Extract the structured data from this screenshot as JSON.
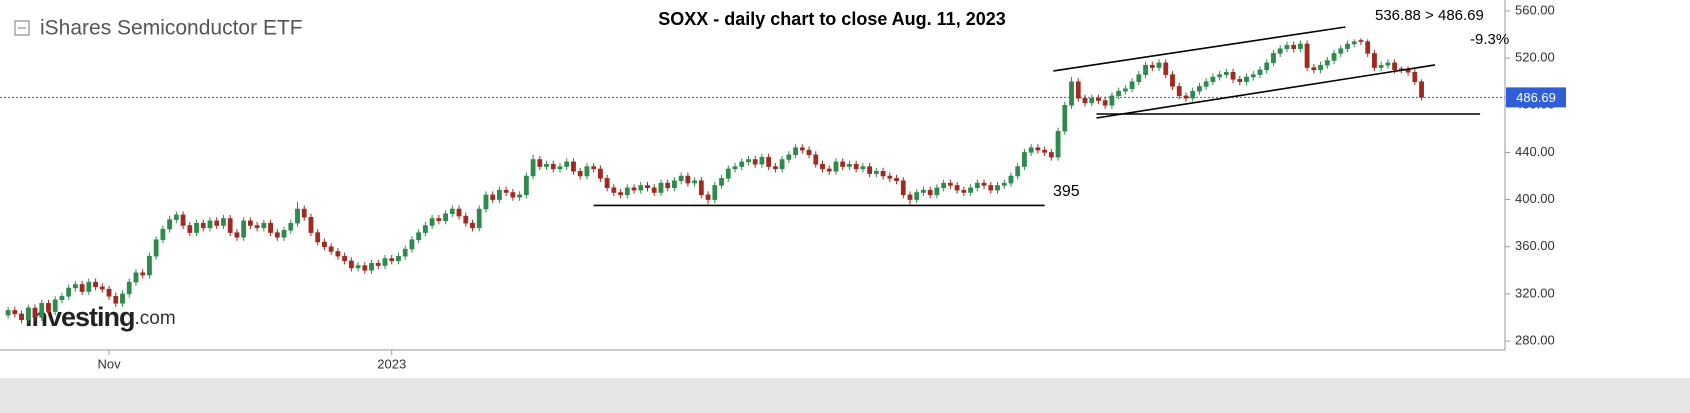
{
  "chart_data": {
    "type": "candlestick",
    "title": "SOXX - daily chart to close Aug. 11, 2023",
    "instrument": "iShares Semiconductor ETF",
    "logo": {
      "name": "Investing",
      "suffix": ".com"
    },
    "annotations": {
      "support": "395",
      "move": "536.88 > 486.69",
      "change": "-9.3%"
    },
    "last_price": 486.69,
    "up_color": "#2e8a4f",
    "down_color": "#9e2a22",
    "price_color": "#2f5ed8",
    "ylim": [
      272.4,
      569.3
    ],
    "yticks": [
      {
        "value": 560,
        "label": "560.00"
      },
      {
        "value": 520,
        "label": "520.00"
      },
      {
        "value": 480,
        "label": "480.00"
      },
      {
        "value": 440,
        "label": "440.00"
      },
      {
        "value": 400,
        "label": "400.00"
      },
      {
        "value": 360,
        "label": "360.00"
      },
      {
        "value": 320,
        "label": "320.00"
      },
      {
        "value": 280,
        "label": "280.00"
      }
    ],
    "xlim": [
      -1.2,
      222.4
    ],
    "xticks": [
      {
        "value": 15,
        "label": "Nov"
      },
      {
        "value": 57,
        "label": "2023"
      }
    ],
    "trendlines": [
      {
        "x": [
          87,
          154
        ],
        "y": [
          395,
          395
        ]
      },
      {
        "x": [
          155.3,
          198.7
        ],
        "y": [
          509.1,
          546.4
        ]
      },
      {
        "x": [
          161.7,
          212
        ],
        "y": [
          469.2,
          514.2
        ]
      },
      {
        "x": [
          161.7,
          218.7
        ],
        "y": [
          472.6,
          472.6
        ]
      }
    ],
    "ohlc": [
      [
        302,
        309,
        299,
        306
      ],
      [
        306,
        309,
        300,
        303
      ],
      [
        303,
        306,
        295,
        298
      ],
      [
        298,
        311,
        295,
        308
      ],
      [
        308,
        311,
        297,
        300
      ],
      [
        300,
        315,
        297,
        312
      ],
      [
        312,
        315,
        302,
        305
      ],
      [
        305,
        318,
        302,
        315
      ],
      [
        315,
        321,
        312,
        318
      ],
      [
        318,
        328,
        315,
        325
      ],
      [
        325,
        331,
        322,
        328
      ],
      [
        328,
        331,
        319,
        322
      ],
      [
        322,
        333,
        319,
        330
      ],
      [
        330,
        333,
        323,
        326
      ],
      [
        326,
        329,
        321,
        324
      ],
      [
        324,
        327,
        315,
        318
      ],
      [
        318,
        321,
        309,
        312
      ],
      [
        312,
        323,
        309,
        320
      ],
      [
        320,
        333,
        317,
        330
      ],
      [
        330,
        341,
        327,
        338
      ],
      [
        338,
        341,
        333,
        336
      ],
      [
        336,
        355,
        333,
        352
      ],
      [
        352,
        369,
        349,
        366
      ],
      [
        366,
        378,
        363,
        375
      ],
      [
        375,
        386,
        372,
        383
      ],
      [
        383,
        390,
        380,
        387
      ],
      [
        387,
        390,
        375,
        378
      ],
      [
        378,
        381,
        369,
        372
      ],
      [
        372,
        383,
        369,
        380
      ],
      [
        380,
        383,
        373,
        376
      ],
      [
        376,
        385,
        373,
        382
      ],
      [
        382,
        385,
        375,
        378
      ],
      [
        378,
        387,
        375,
        384
      ],
      [
        384,
        387,
        369,
        372
      ],
      [
        372,
        375,
        365,
        368
      ],
      [
        368,
        385,
        365,
        382
      ],
      [
        382,
        385,
        375,
        378
      ],
      [
        378,
        381,
        373,
        376
      ],
      [
        376,
        383,
        373,
        380
      ],
      [
        380,
        383,
        369,
        372
      ],
      [
        372,
        375,
        365,
        368
      ],
      [
        368,
        377,
        365,
        374
      ],
      [
        374,
        383,
        371,
        380
      ],
      [
        380,
        398,
        377,
        392
      ],
      [
        392,
        395,
        382,
        385
      ],
      [
        385,
        388,
        369,
        372
      ],
      [
        372,
        375,
        361,
        364
      ],
      [
        364,
        367,
        357,
        360
      ],
      [
        360,
        363,
        353,
        356
      ],
      [
        356,
        359,
        349,
        352
      ],
      [
        352,
        355,
        345,
        348
      ],
      [
        348,
        351,
        339,
        342
      ],
      [
        342,
        347,
        339,
        344
      ],
      [
        344,
        347,
        337,
        340
      ],
      [
        340,
        349,
        337,
        346
      ],
      [
        346,
        349,
        341,
        344
      ],
      [
        344,
        353,
        341,
        350
      ],
      [
        350,
        353,
        345,
        348
      ],
      [
        348,
        355,
        345,
        352
      ],
      [
        352,
        361,
        349,
        358
      ],
      [
        358,
        369,
        355,
        366
      ],
      [
        366,
        375,
        363,
        372
      ],
      [
        372,
        381,
        369,
        378
      ],
      [
        378,
        387,
        375,
        384
      ],
      [
        384,
        387,
        379,
        382
      ],
      [
        382,
        391,
        379,
        388
      ],
      [
        388,
        395,
        385,
        392
      ],
      [
        392,
        395,
        383,
        386
      ],
      [
        386,
        389,
        377,
        380
      ],
      [
        380,
        383,
        373,
        376
      ],
      [
        376,
        395,
        373,
        392
      ],
      [
        392,
        407,
        389,
        404
      ],
      [
        404,
        407,
        397,
        400
      ],
      [
        400,
        411,
        397,
        408
      ],
      [
        408,
        411,
        403,
        406
      ],
      [
        406,
        409,
        399,
        402
      ],
      [
        402,
        407,
        399,
        404
      ],
      [
        404,
        423,
        401,
        420
      ],
      [
        420,
        438,
        417,
        434
      ],
      [
        434,
        437,
        425,
        428
      ],
      [
        428,
        433,
        425,
        430
      ],
      [
        430,
        433,
        423,
        426
      ],
      [
        426,
        431,
        423,
        428
      ],
      [
        428,
        435,
        425,
        432
      ],
      [
        432,
        435,
        421,
        424
      ],
      [
        424,
        427,
        417,
        420
      ],
      [
        420,
        431,
        417,
        428
      ],
      [
        428,
        431,
        423,
        426
      ],
      [
        426,
        429,
        415,
        418
      ],
      [
        418,
        421,
        407,
        410
      ],
      [
        410,
        413,
        403,
        406
      ],
      [
        406,
        409,
        401,
        404
      ],
      [
        404,
        413,
        401,
        410
      ],
      [
        410,
        413,
        405,
        408
      ],
      [
        408,
        415,
        405,
        412
      ],
      [
        412,
        415,
        407,
        410
      ],
      [
        410,
        413,
        403,
        406
      ],
      [
        406,
        417,
        403,
        414
      ],
      [
        414,
        417,
        407,
        410
      ],
      [
        410,
        419,
        407,
        416
      ],
      [
        416,
        423,
        413,
        420
      ],
      [
        420,
        423,
        411,
        414
      ],
      [
        414,
        419,
        411,
        416
      ],
      [
        416,
        419,
        401,
        404
      ],
      [
        404,
        407,
        396,
        400
      ],
      [
        400,
        415,
        397,
        412
      ],
      [
        412,
        421,
        409,
        418
      ],
      [
        418,
        429,
        415,
        426
      ],
      [
        426,
        431,
        423,
        428
      ],
      [
        428,
        435,
        425,
        432
      ],
      [
        432,
        437,
        429,
        434
      ],
      [
        434,
        437,
        427,
        430
      ],
      [
        430,
        439,
        427,
        436
      ],
      [
        436,
        439,
        425,
        428
      ],
      [
        428,
        431,
        423,
        426
      ],
      [
        426,
        437,
        423,
        434
      ],
      [
        434,
        441,
        431,
        438
      ],
      [
        438,
        447,
        435,
        444
      ],
      [
        444,
        447,
        439,
        442
      ],
      [
        442,
        445,
        435,
        438
      ],
      [
        438,
        441,
        427,
        430
      ],
      [
        430,
        433,
        423,
        426
      ],
      [
        426,
        429,
        421,
        424
      ],
      [
        424,
        435,
        421,
        432
      ],
      [
        432,
        435,
        425,
        428
      ],
      [
        428,
        433,
        425,
        430
      ],
      [
        430,
        433,
        423,
        426
      ],
      [
        426,
        431,
        423,
        428
      ],
      [
        428,
        431,
        419,
        422
      ],
      [
        422,
        427,
        419,
        424
      ],
      [
        424,
        427,
        417,
        420
      ],
      [
        420,
        423,
        415,
        418
      ],
      [
        418,
        421,
        413,
        416
      ],
      [
        416,
        419,
        401,
        404
      ],
      [
        404,
        407,
        396,
        400
      ],
      [
        400,
        409,
        397,
        406
      ],
      [
        406,
        411,
        403,
        408
      ],
      [
        408,
        411,
        401,
        404
      ],
      [
        404,
        413,
        401,
        410
      ],
      [
        410,
        417,
        407,
        414
      ],
      [
        414,
        417,
        409,
        412
      ],
      [
        412,
        415,
        405,
        408
      ],
      [
        408,
        411,
        403,
        406
      ],
      [
        406,
        413,
        403,
        410
      ],
      [
        410,
        417,
        407,
        414
      ],
      [
        414,
        417,
        409,
        412
      ],
      [
        412,
        415,
        405,
        408
      ],
      [
        408,
        415,
        405,
        412
      ],
      [
        412,
        417,
        409,
        414
      ],
      [
        414,
        423,
        411,
        420
      ],
      [
        420,
        431,
        417,
        428
      ],
      [
        428,
        443,
        425,
        440
      ],
      [
        440,
        447,
        437,
        444
      ],
      [
        444,
        447,
        439,
        442
      ],
      [
        442,
        445,
        437,
        440
      ],
      [
        440,
        443,
        433,
        436
      ],
      [
        436,
        461,
        433,
        458
      ],
      [
        458,
        483,
        455,
        480
      ],
      [
        480,
        504,
        477,
        500
      ],
      [
        500,
        503,
        483,
        486
      ],
      [
        486,
        489,
        479,
        482
      ],
      [
        482,
        489,
        479,
        486
      ],
      [
        486,
        489,
        481,
        484
      ],
      [
        484,
        487,
        477,
        480
      ],
      [
        480,
        491,
        477,
        488
      ],
      [
        488,
        495,
        485,
        492
      ],
      [
        492,
        497,
        489,
        494
      ],
      [
        494,
        503,
        491,
        500
      ],
      [
        500,
        509,
        497,
        506
      ],
      [
        506,
        517,
        503,
        514
      ],
      [
        514,
        517,
        509,
        512
      ],
      [
        512,
        519,
        509,
        516
      ],
      [
        516,
        519,
        503,
        506
      ],
      [
        506,
        509,
        493,
        496
      ],
      [
        496,
        499,
        485,
        488
      ],
      [
        488,
        491,
        483,
        486
      ],
      [
        486,
        495,
        483,
        492
      ],
      [
        492,
        499,
        489,
        496
      ],
      [
        496,
        503,
        493,
        500
      ],
      [
        500,
        507,
        497,
        504
      ],
      [
        504,
        509,
        501,
        506
      ],
      [
        506,
        511,
        503,
        508
      ],
      [
        508,
        511,
        499,
        502
      ],
      [
        502,
        505,
        497,
        500
      ],
      [
        500,
        507,
        497,
        504
      ],
      [
        504,
        509,
        501,
        506
      ],
      [
        506,
        513,
        503,
        510
      ],
      [
        510,
        519,
        507,
        516
      ],
      [
        516,
        527,
        513,
        524
      ],
      [
        524,
        531,
        521,
        528
      ],
      [
        528,
        534,
        525,
        531
      ],
      [
        531,
        534,
        525,
        528
      ],
      [
        528,
        535,
        525,
        532
      ],
      [
        532,
        535,
        509,
        512
      ],
      [
        512,
        515,
        507,
        510
      ],
      [
        510,
        517,
        507,
        514
      ],
      [
        514,
        521,
        511,
        518
      ],
      [
        518,
        527,
        515,
        524
      ],
      [
        524,
        531,
        521,
        528
      ],
      [
        528,
        535,
        525,
        532
      ],
      [
        532,
        536,
        529,
        534
      ],
      [
        535,
        536.88,
        531,
        534
      ],
      [
        534,
        536,
        521,
        524
      ],
      [
        524,
        527,
        509,
        512
      ],
      [
        512,
        517,
        509,
        514
      ],
      [
        514,
        519,
        511,
        516
      ],
      [
        516,
        519,
        507,
        510
      ],
      [
        511,
        513,
        507,
        510
      ],
      [
        510,
        513,
        505,
        508
      ],
      [
        508,
        511,
        497,
        500
      ],
      [
        500,
        502,
        484,
        486.69
      ]
    ]
  }
}
